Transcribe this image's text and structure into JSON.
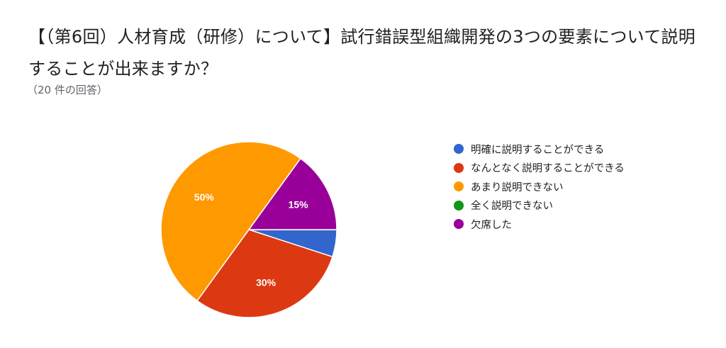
{
  "header": {
    "title": "【（第6回）人材育成（研修）について】試行錯誤型組織開発の3つの要素について説明することが出来ますか？",
    "response_count": "（20 件の回答）"
  },
  "chart_data": {
    "type": "pie",
    "categories": [
      "明確に説明することができる",
      "なんとなく説明することができる",
      "あまり説明できない",
      "全く説明できない",
      "欠席した"
    ],
    "values": [
      1,
      6,
      10,
      0,
      3
    ],
    "percent_labels": [
      "",
      "30%",
      "50%",
      "",
      "15%"
    ],
    "colors": [
      "#3366cc",
      "#dc3912",
      "#ff9900",
      "#109618",
      "#990099"
    ],
    "legend_position": "right",
    "start_direction": "right",
    "direction": "clockwise"
  }
}
